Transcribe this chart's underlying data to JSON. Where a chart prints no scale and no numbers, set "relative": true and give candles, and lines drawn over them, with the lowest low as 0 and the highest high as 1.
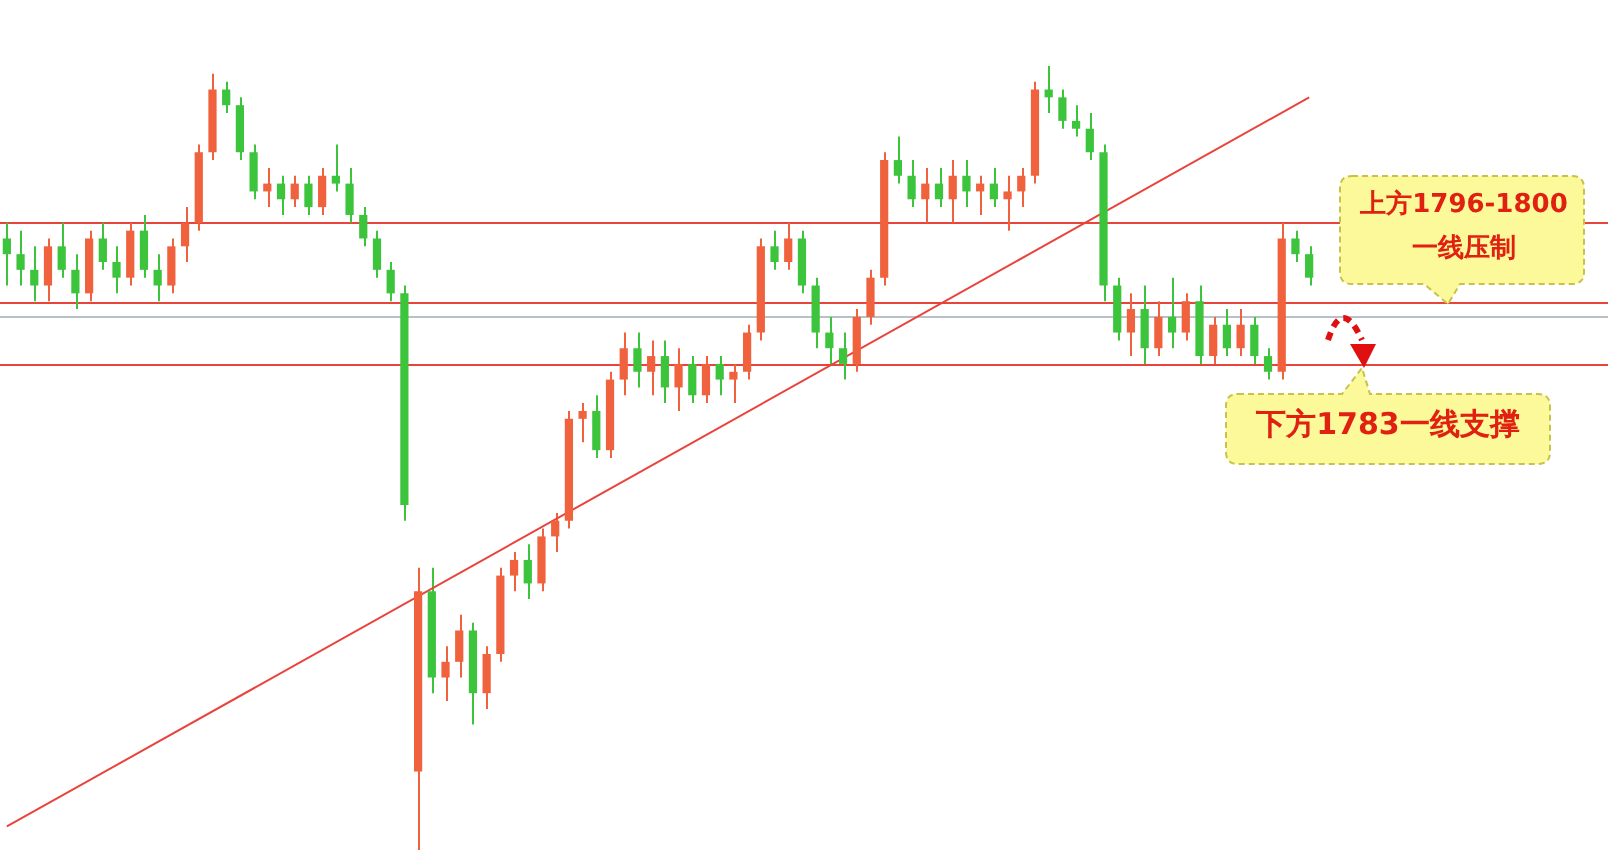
{
  "chart_data": {
    "type": "candlestick",
    "relative": true,
    "categories": [
      null,
      null,
      null,
      null,
      null,
      null,
      null,
      null,
      null,
      null,
      null,
      null,
      null,
      null,
      null,
      null,
      null,
      null,
      null,
      null,
      null,
      null,
      null,
      null,
      null,
      null,
      null,
      null,
      null,
      null,
      null,
      null,
      null,
      null,
      null,
      null,
      null,
      null,
      null,
      null,
      null,
      null,
      null,
      null,
      null,
      null,
      null,
      null,
      null,
      null,
      null,
      null,
      null,
      null,
      null,
      null,
      null,
      null,
      null,
      null,
      null,
      null,
      null,
      null,
      null,
      null,
      null,
      null,
      null,
      null,
      null,
      null,
      null,
      null,
      null,
      null,
      null,
      null,
      null,
      null,
      null,
      null,
      null,
      null,
      null,
      null,
      null,
      null,
      null,
      null,
      null,
      null,
      null,
      null,
      null,
      null
    ],
    "ohlc": [
      [
        0.78,
        0.8,
        0.72,
        0.76
      ],
      [
        0.76,
        0.79,
        0.72,
        0.74
      ],
      [
        0.74,
        0.77,
        0.7,
        0.72
      ],
      [
        0.72,
        0.78,
        0.7,
        0.77
      ],
      [
        0.77,
        0.8,
        0.73,
        0.74
      ],
      [
        0.74,
        0.76,
        0.69,
        0.71
      ],
      [
        0.71,
        0.79,
        0.7,
        0.78
      ],
      [
        0.78,
        0.8,
        0.74,
        0.75
      ],
      [
        0.75,
        0.77,
        0.71,
        0.73
      ],
      [
        0.73,
        0.8,
        0.72,
        0.79
      ],
      [
        0.79,
        0.81,
        0.73,
        0.74
      ],
      [
        0.74,
        0.76,
        0.7,
        0.72
      ],
      [
        0.72,
        0.78,
        0.71,
        0.77
      ],
      [
        0.77,
        0.82,
        0.75,
        0.8
      ],
      [
        0.8,
        0.9,
        0.79,
        0.89
      ],
      [
        0.89,
        0.99,
        0.88,
        0.97
      ],
      [
        0.97,
        0.98,
        0.94,
        0.95
      ],
      [
        0.95,
        0.96,
        0.88,
        0.89
      ],
      [
        0.89,
        0.9,
        0.83,
        0.84
      ],
      [
        0.84,
        0.87,
        0.82,
        0.85
      ],
      [
        0.85,
        0.86,
        0.81,
        0.83
      ],
      [
        0.83,
        0.86,
        0.82,
        0.85
      ],
      [
        0.85,
        0.86,
        0.81,
        0.82
      ],
      [
        0.82,
        0.87,
        0.81,
        0.86
      ],
      [
        0.86,
        0.9,
        0.84,
        0.85
      ],
      [
        0.85,
        0.87,
        0.8,
        0.81
      ],
      [
        0.81,
        0.82,
        0.77,
        0.78
      ],
      [
        0.78,
        0.79,
        0.73,
        0.74
      ],
      [
        0.74,
        0.75,
        0.7,
        0.71
      ],
      [
        0.71,
        0.72,
        0.42,
        0.44
      ],
      [
        0.1,
        0.36,
        0.0,
        0.33
      ],
      [
        0.33,
        0.36,
        0.2,
        0.22
      ],
      [
        0.22,
        0.26,
        0.19,
        0.24
      ],
      [
        0.24,
        0.3,
        0.22,
        0.28
      ],
      [
        0.28,
        0.29,
        0.16,
        0.2
      ],
      [
        0.2,
        0.26,
        0.18,
        0.25
      ],
      [
        0.25,
        0.36,
        0.24,
        0.35
      ],
      [
        0.35,
        0.38,
        0.33,
        0.37
      ],
      [
        0.37,
        0.39,
        0.32,
        0.34
      ],
      [
        0.34,
        0.41,
        0.33,
        0.4
      ],
      [
        0.4,
        0.43,
        0.38,
        0.42
      ],
      [
        0.42,
        0.56,
        0.41,
        0.55
      ],
      [
        0.55,
        0.57,
        0.52,
        0.56
      ],
      [
        0.56,
        0.58,
        0.5,
        0.51
      ],
      [
        0.51,
        0.61,
        0.5,
        0.6
      ],
      [
        0.6,
        0.66,
        0.58,
        0.64
      ],
      [
        0.64,
        0.66,
        0.59,
        0.61
      ],
      [
        0.61,
        0.65,
        0.58,
        0.63
      ],
      [
        0.63,
        0.65,
        0.57,
        0.59
      ],
      [
        0.59,
        0.64,
        0.56,
        0.62
      ],
      [
        0.62,
        0.63,
        0.57,
        0.58
      ],
      [
        0.58,
        0.63,
        0.57,
        0.62
      ],
      [
        0.62,
        0.63,
        0.58,
        0.6
      ],
      [
        0.6,
        0.62,
        0.57,
        0.61
      ],
      [
        0.61,
        0.67,
        0.6,
        0.66
      ],
      [
        0.66,
        0.78,
        0.65,
        0.77
      ],
      [
        0.77,
        0.79,
        0.74,
        0.75
      ],
      [
        0.75,
        0.8,
        0.74,
        0.78
      ],
      [
        0.78,
        0.79,
        0.71,
        0.72
      ],
      [
        0.72,
        0.73,
        0.64,
        0.66
      ],
      [
        0.66,
        0.68,
        0.62,
        0.64
      ],
      [
        0.64,
        0.66,
        0.6,
        0.62
      ],
      [
        0.62,
        0.69,
        0.61,
        0.68
      ],
      [
        0.68,
        0.74,
        0.67,
        0.73
      ],
      [
        0.73,
        0.89,
        0.72,
        0.88
      ],
      [
        0.88,
        0.91,
        0.85,
        0.86
      ],
      [
        0.86,
        0.88,
        0.82,
        0.83
      ],
      [
        0.83,
        0.87,
        0.8,
        0.85
      ],
      [
        0.85,
        0.87,
        0.82,
        0.83
      ],
      [
        0.83,
        0.88,
        0.8,
        0.86
      ],
      [
        0.86,
        0.88,
        0.82,
        0.84
      ],
      [
        0.84,
        0.86,
        0.81,
        0.85
      ],
      [
        0.85,
        0.87,
        0.82,
        0.83
      ],
      [
        0.83,
        0.86,
        0.79,
        0.84
      ],
      [
        0.84,
        0.87,
        0.82,
        0.86
      ],
      [
        0.86,
        0.98,
        0.85,
        0.97
      ],
      [
        0.97,
        1.0,
        0.94,
        0.96
      ],
      [
        0.96,
        0.97,
        0.92,
        0.93
      ],
      [
        0.93,
        0.95,
        0.91,
        0.92
      ],
      [
        0.92,
        0.94,
        0.88,
        0.89
      ],
      [
        0.89,
        0.9,
        0.7,
        0.72
      ],
      [
        0.72,
        0.73,
        0.65,
        0.66
      ],
      [
        0.66,
        0.71,
        0.63,
        0.69
      ],
      [
        0.69,
        0.72,
        0.62,
        0.64
      ],
      [
        0.64,
        0.7,
        0.63,
        0.68
      ],
      [
        0.68,
        0.73,
        0.64,
        0.66
      ],
      [
        0.66,
        0.71,
        0.65,
        0.7
      ],
      [
        0.7,
        0.72,
        0.62,
        0.63
      ],
      [
        0.63,
        0.68,
        0.62,
        0.67
      ],
      [
        0.67,
        0.69,
        0.63,
        0.64
      ],
      [
        0.64,
        0.69,
        0.63,
        0.67
      ],
      [
        0.67,
        0.68,
        0.62,
        0.63
      ],
      [
        0.63,
        0.64,
        0.6,
        0.61
      ],
      [
        0.61,
        0.8,
        0.6,
        0.78
      ],
      [
        0.78,
        0.79,
        0.75,
        0.76
      ],
      [
        0.76,
        0.77,
        0.72,
        0.73
      ]
    ],
    "series": [
      {
        "type": "line",
        "color": "#e8443c",
        "values": [
          0.03,
          null,
          null,
          null,
          null,
          null,
          null,
          null,
          null,
          null,
          null,
          null,
          null,
          null,
          null,
          null,
          null,
          null,
          null,
          null,
          null,
          null,
          null,
          null,
          null,
          null,
          null,
          null,
          null,
          null,
          null,
          null,
          null,
          null,
          null,
          null,
          null,
          null,
          null,
          null,
          null,
          null,
          null,
          null,
          null,
          null,
          null,
          null,
          null,
          null,
          null,
          null,
          null,
          null,
          null,
          null,
          null,
          null,
          null,
          null,
          null,
          null,
          null,
          null,
          null,
          null,
          null,
          null,
          null,
          null,
          null,
          null,
          null,
          null,
          null,
          null,
          null,
          null,
          null,
          null,
          null,
          null,
          null,
          null,
          null,
          null,
          null,
          null,
          null,
          null,
          null,
          null,
          null,
          null,
          null,
          0.96
        ]
      }
    ],
    "ref_lines": [
      {
        "axis": "y",
        "value": 0.8,
        "color": "#e8443c"
      },
      {
        "axis": "y",
        "value": 0.7,
        "color": "#e8443c"
      },
      {
        "axis": "y",
        "value": 0.68,
        "color": "#b8c0c8"
      },
      {
        "axis": "y",
        "value": 0.62,
        "color": "#e8443c"
      }
    ],
    "annotations": [
      "上方1796-1800一线压制",
      "下方1783一线支撑"
    ]
  }
}
